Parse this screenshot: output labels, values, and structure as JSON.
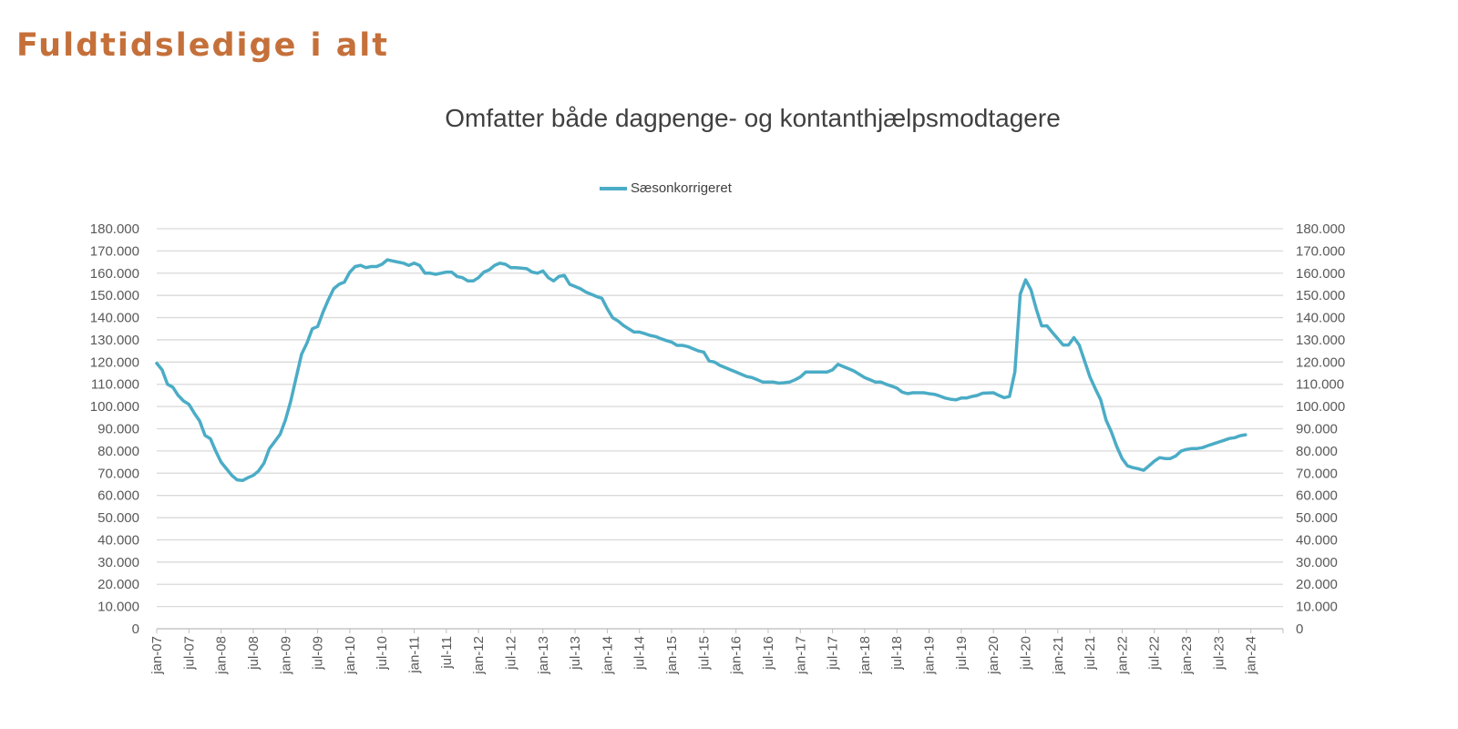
{
  "page": {
    "title": "Fuldtidsledige i alt"
  },
  "chart_data": {
    "type": "line",
    "title": "Omfatter både dagpenge- og kontanthjælpsmodtagere",
    "xlabel": "",
    "ylabel": "",
    "legend_position": "top",
    "grid": true,
    "ylim": [
      0,
      180000
    ],
    "y_ticks": [
      "0",
      "10.000",
      "20.000",
      "30.000",
      "40.000",
      "50.000",
      "60.000",
      "70.000",
      "80.000",
      "90.000",
      "100.000",
      "110.000",
      "120.000",
      "130.000",
      "140.000",
      "150.000",
      "160.000",
      "170.000",
      "180.000"
    ],
    "secondary_y_axis": true,
    "x_start": "jan-07",
    "x_frequency": "monthly",
    "x_range": [
      "jan-07",
      "jul-24"
    ],
    "x_ticks": [
      "jan-07",
      "jul-07",
      "jan-08",
      "jul-08",
      "jan-09",
      "jul-09",
      "jan-10",
      "jul-10",
      "jan-11",
      "jul-11",
      "jan-12",
      "jul-12",
      "jan-13",
      "jul-13",
      "jan-14",
      "jul-14",
      "jan-15",
      "jul-15",
      "jan-16",
      "jul-16",
      "jan-17",
      "jul-17",
      "jan-18",
      "jul-18",
      "jan-19",
      "jul-19",
      "jan-20",
      "jul-20",
      "jan-21",
      "jul-21",
      "jan-22",
      "jul-22",
      "jan-23",
      "jul-23",
      "jan-24"
    ],
    "series": [
      {
        "name": "Sæsonkorrigeret",
        "color": "#4BACC6",
        "values": [
          119500,
          116500,
          110000,
          108700,
          105000,
          102500,
          101000,
          97000,
          93500,
          87000,
          85500,
          80000,
          75000,
          72000,
          69000,
          67000,
          66700,
          68000,
          69000,
          71000,
          74500,
          81000,
          84200,
          87500,
          94000,
          102500,
          113000,
          123500,
          128500,
          135000,
          136000,
          142500,
          148000,
          153000,
          155000,
          156000,
          160500,
          163000,
          163500,
          162500,
          163000,
          163000,
          164000,
          166000,
          165500,
          165000,
          164500,
          163500,
          164500,
          163500,
          160000,
          160000,
          159500,
          160000,
          160500,
          160500,
          158500,
          158000,
          156500,
          156500,
          158000,
          160500,
          161500,
          163500,
          164500,
          164000,
          162500,
          162500,
          162300,
          162000,
          160500,
          160000,
          161000,
          158000,
          156500,
          158500,
          159000,
          155000,
          154000,
          153000,
          151500,
          150500,
          149500,
          148700,
          144000,
          140000,
          138500,
          136500,
          135000,
          133500,
          133500,
          132800,
          132000,
          131500,
          130500,
          129700,
          129000,
          127500,
          127500,
          127000,
          126000,
          125000,
          124500,
          120500,
          120000,
          118500,
          117500,
          116500,
          115500,
          114500,
          113500,
          113000,
          112000,
          111000,
          111000,
          111000,
          110500,
          110700,
          111000,
          112000,
          113300,
          115500,
          115500,
          115500,
          115500,
          115500,
          116500,
          119000,
          118000,
          117000,
          116000,
          114500,
          113000,
          112000,
          111000,
          111000,
          110000,
          109200,
          108300,
          106500,
          105800,
          106200,
          106200,
          106200,
          105800,
          105500,
          104700,
          103800,
          103300,
          103000,
          103800,
          103800,
          104500,
          105000,
          106000,
          106100,
          106200,
          105000,
          104000,
          104500,
          115500,
          150500,
          157000,
          152500,
          143700,
          136300,
          136300,
          133300,
          130500,
          127700,
          127700,
          131000,
          127700,
          120500,
          113300,
          108000,
          103000,
          93900,
          88500,
          82000,
          76600,
          73300,
          72500,
          72000,
          71300,
          73300,
          75400,
          77000,
          76600,
          76600,
          77800,
          80000,
          80700,
          81100,
          81100,
          81500,
          82400,
          83200,
          84000,
          84800,
          85600,
          86000,
          86900,
          87300
        ]
      }
    ]
  }
}
